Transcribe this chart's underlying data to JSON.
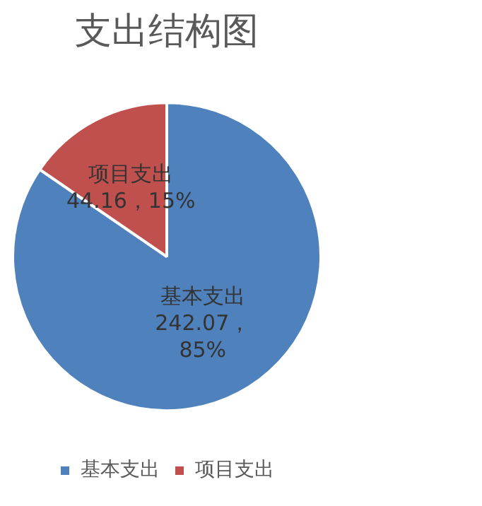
{
  "chart_data": {
    "type": "pie",
    "title": "支出结构图",
    "categories": [
      "基本支出",
      "项目支出"
    ],
    "values": [
      242.07,
      44.16
    ],
    "colors": [
      "#4f81bd",
      "#c0504d"
    ],
    "value_labels": [
      "基本支出\n242.07，\n85%",
      "项目支出\n44.16，15%"
    ],
    "legend": "bottom"
  }
}
